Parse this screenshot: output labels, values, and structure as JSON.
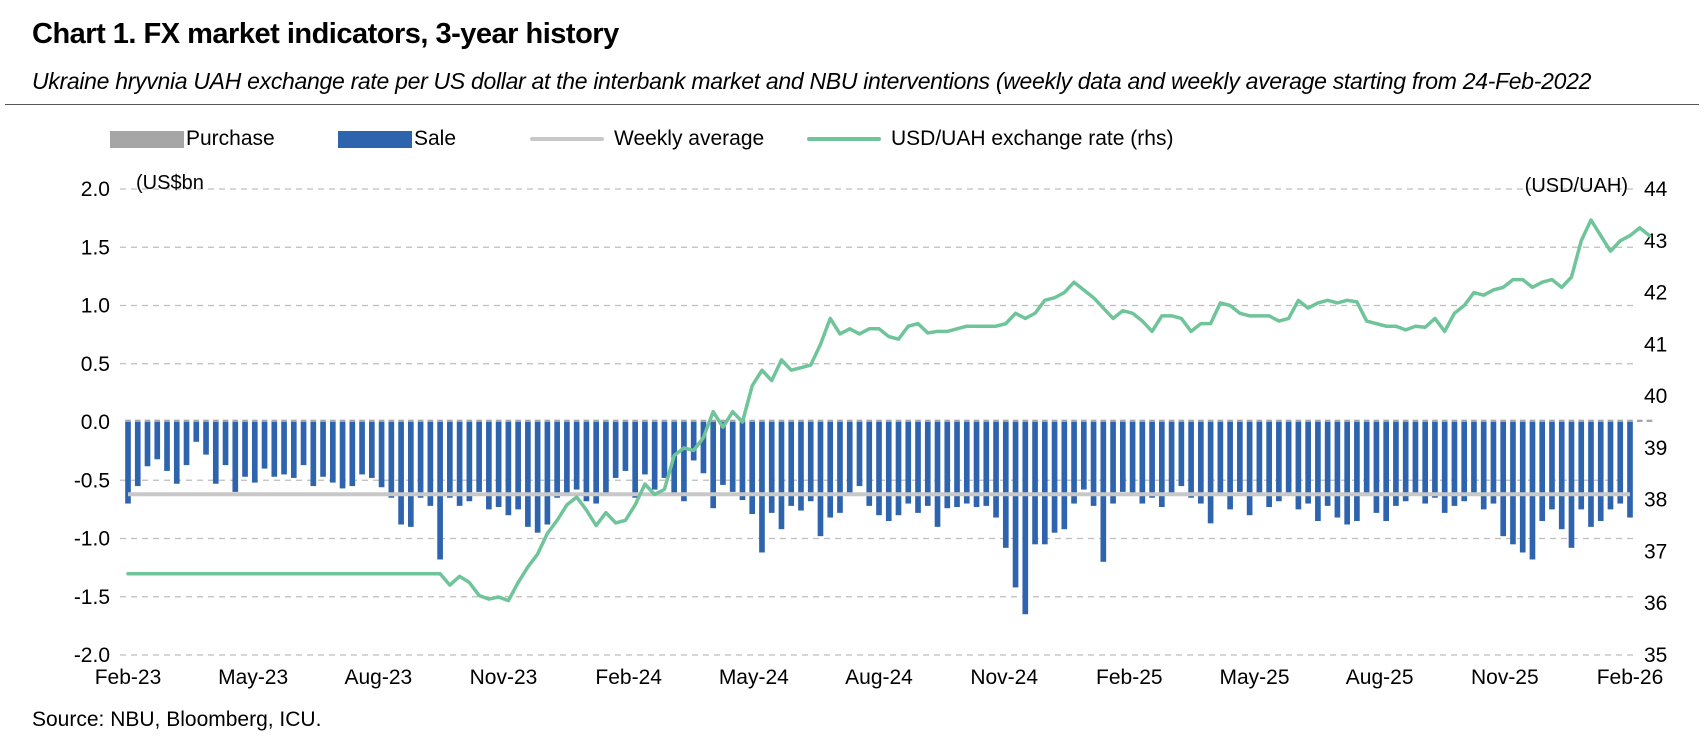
{
  "title": "Chart 1. FX market indicators, 3-year history",
  "subtitle": "Ukraine hryvnia UAH exchange rate per US dollar at the interbank market and NBU interventions (weekly data and weekly average starting from 24-Feb-2022",
  "source": "Source: NBU, Bloomberg, ICU.",
  "colors": {
    "purchase": "#a6a6a6",
    "sale": "#2e63ae",
    "weekly_average": "#c8c8c8",
    "exchange_rate": "#6fc49a",
    "grid": "#bdbdbd"
  },
  "legend": {
    "purchase": "Purchase",
    "sale": "Sale",
    "weekly_average": "Weekly average",
    "exchange_rate": "USD/UAH exchange rate (rhs)"
  },
  "chart_data": {
    "type": "bar",
    "left_axis_unit": "(US$bn",
    "right_axis_unit": "(USD/UAH)",
    "ylim": [
      -2.0,
      2.0
    ],
    "y2lim": [
      35,
      44
    ],
    "y_ticks": [
      "2.0",
      "1.5",
      "1.0",
      "0.5",
      "0.0",
      "-0.5",
      "-1.0",
      "-1.5",
      "-2.0"
    ],
    "y2_ticks": [
      "44",
      "43",
      "42",
      "41",
      "40",
      "39",
      "38",
      "37",
      "36",
      "35"
    ],
    "x_tick_labels": [
      "Feb-23",
      "May-23",
      "Aug-23",
      "Nov-23",
      "Feb-24",
      "May-24",
      "Aug-24",
      "Nov-24",
      "Feb-25",
      "May-25",
      "Aug-25",
      "Nov-25",
      "Feb-26"
    ],
    "grid": true,
    "legend_position": "top",
    "series": [
      {
        "name": "Purchase",
        "type": "bar",
        "values": [
          0.02,
          0.02,
          0.02,
          0.02,
          0.02,
          0.02,
          0.02,
          0.02,
          0.02,
          0.02,
          0.02,
          0.02,
          0.02,
          0.02,
          0.02,
          0.02,
          0.02,
          0.02,
          0.02,
          0.02,
          0.02,
          0.02,
          0.02,
          0.02,
          0.02,
          0.02,
          0.02,
          0.02,
          0.02,
          0.02,
          0.02,
          0.02,
          0.02,
          0.02,
          0.02,
          0.02,
          0.02,
          0.02,
          0.02,
          0.02,
          0.02,
          0.02,
          0.02,
          0.02,
          0.02,
          0.02,
          0.02,
          0.02,
          0.02,
          0.02,
          0.02,
          0.02,
          0.02,
          0.02,
          0.02,
          0.02,
          0.02,
          0.02,
          0.02,
          0.02,
          0.02,
          0.02,
          0.02,
          0.02,
          0.02,
          0.02,
          0.02,
          0.02,
          0.02,
          0.02,
          0.02,
          0.02,
          0.02,
          0.02,
          0.02,
          0.02,
          0.02,
          0.02,
          0.02,
          0.02,
          0.02,
          0.02,
          0.02,
          0.02,
          0.02,
          0.02,
          0.02,
          0.02,
          0.02,
          0.02,
          0.02,
          0.02,
          0.02,
          0.02,
          0.02,
          0.02,
          0.02,
          0.02,
          0.02,
          0.02,
          0.02,
          0.02,
          0.02,
          0.02,
          0.02,
          0.02,
          0.02,
          0.02,
          0.02,
          0.02,
          0.02,
          0.02,
          0.02,
          0.02,
          0.02,
          0.02,
          0.02,
          0.02,
          0.02,
          0.02,
          0.02,
          0.02,
          0.02,
          0.02,
          0.02,
          0.02,
          0.02,
          0.02,
          0.02,
          0.02,
          0.02,
          0.02,
          0.02,
          0.02,
          0.02,
          0.02,
          0.02,
          0.02,
          0.02,
          0.02,
          0.02,
          0.02,
          0.02,
          0.02,
          0.02,
          0.02,
          0.02,
          0.02,
          0.02,
          0.02,
          0.02,
          0.02,
          0.02,
          0.02,
          0.02,
          0.02,
          0.02
        ]
      },
      {
        "name": "Sale",
        "type": "bar",
        "values": [
          -0.7,
          -0.55,
          -0.38,
          -0.32,
          -0.42,
          -0.53,
          -0.37,
          -0.17,
          -0.28,
          -0.53,
          -0.37,
          -0.6,
          -0.47,
          -0.52,
          -0.4,
          -0.47,
          -0.45,
          -0.48,
          -0.37,
          -0.55,
          -0.47,
          -0.52,
          -0.57,
          -0.55,
          -0.45,
          -0.48,
          -0.56,
          -0.65,
          -0.88,
          -0.9,
          -0.65,
          -0.72,
          -1.18,
          -0.65,
          -0.72,
          -0.68,
          -0.6,
          -0.75,
          -0.73,
          -0.8,
          -0.75,
          -0.9,
          -0.95,
          -0.88,
          -0.65,
          -0.62,
          -0.58,
          -0.68,
          -0.7,
          -0.62,
          -0.48,
          -0.42,
          -0.65,
          -0.45,
          -0.58,
          -0.48,
          -0.62,
          -0.68,
          -0.33,
          -0.44,
          -0.74,
          -0.54,
          -0.6,
          -0.67,
          -0.79,
          -1.12,
          -0.78,
          -0.92,
          -0.72,
          -0.76,
          -0.68,
          -0.98,
          -0.82,
          -0.78,
          -0.62,
          -0.55,
          -0.72,
          -0.8,
          -0.85,
          -0.8,
          -0.7,
          -0.78,
          -0.72,
          -0.9,
          -0.74,
          -0.73,
          -0.7,
          -0.73,
          -0.72,
          -0.82,
          -1.08,
          -1.42,
          -1.65,
          -1.05,
          -1.05,
          -0.95,
          -0.92,
          -0.7,
          -0.58,
          -0.72,
          -1.2,
          -0.7,
          -0.6,
          -0.63,
          -0.7,
          -0.65,
          -0.73,
          -0.62,
          -0.55,
          -0.65,
          -0.7,
          -0.87,
          -0.62,
          -0.75,
          -0.6,
          -0.8,
          -0.62,
          -0.73,
          -0.68,
          -0.62,
          -0.75,
          -0.7,
          -0.85,
          -0.72,
          -0.82,
          -0.88,
          -0.85,
          -0.62,
          -0.78,
          -0.85,
          -0.72,
          -0.68,
          -0.63,
          -0.7,
          -0.65,
          -0.78,
          -0.72,
          -0.68,
          -0.62,
          -0.75,
          -0.7,
          -0.98,
          -1.05,
          -1.12,
          -1.18,
          -0.85,
          -0.75,
          -0.92,
          -1.08,
          -0.75,
          -0.9,
          -0.85,
          -0.75,
          -0.7,
          -0.82
        ]
      },
      {
        "name": "Weekly average",
        "type": "line",
        "values": [
          -0.62,
          -0.62,
          -0.62,
          -0.62,
          -0.62,
          -0.62,
          -0.62,
          -0.62,
          -0.62,
          -0.62,
          -0.62,
          -0.62,
          -0.62,
          -0.62,
          -0.62,
          -0.62,
          -0.62,
          -0.62,
          -0.62,
          -0.62,
          -0.62,
          -0.62,
          -0.62,
          -0.62,
          -0.62,
          -0.62,
          -0.62,
          -0.62,
          -0.62,
          -0.62,
          -0.62,
          -0.62,
          -0.62,
          -0.62,
          -0.62,
          -0.62,
          -0.62,
          -0.62,
          -0.62,
          -0.62,
          -0.62,
          -0.62,
          -0.62,
          -0.62,
          -0.62,
          -0.62,
          -0.62,
          -0.62,
          -0.62,
          -0.62,
          -0.62,
          -0.62,
          -0.62,
          -0.62,
          -0.62,
          -0.62,
          -0.62,
          -0.62,
          -0.62,
          -0.62,
          -0.62,
          -0.62,
          -0.62,
          -0.62,
          -0.62,
          -0.62,
          -0.62,
          -0.62,
          -0.62,
          -0.62,
          -0.62,
          -0.62,
          -0.62,
          -0.62,
          -0.62,
          -0.62,
          -0.62,
          -0.62,
          -0.62,
          -0.62,
          -0.62,
          -0.62,
          -0.62,
          -0.62,
          -0.62,
          -0.62,
          -0.62,
          -0.62,
          -0.62,
          -0.62,
          -0.62,
          -0.62,
          -0.62,
          -0.62,
          -0.62,
          -0.62,
          -0.62,
          -0.62,
          -0.62,
          -0.62,
          -0.62,
          -0.62,
          -0.62,
          -0.62,
          -0.62,
          -0.62,
          -0.62,
          -0.62,
          -0.62,
          -0.62,
          -0.62,
          -0.62,
          -0.62,
          -0.62,
          -0.62,
          -0.62,
          -0.62,
          -0.62,
          -0.62,
          -0.62,
          -0.62,
          -0.62,
          -0.62,
          -0.62,
          -0.62,
          -0.62,
          -0.62,
          -0.62,
          -0.62,
          -0.62,
          -0.62,
          -0.62,
          -0.62,
          -0.62,
          -0.62,
          -0.62,
          -0.62,
          -0.62,
          -0.62,
          -0.62,
          -0.62,
          -0.62,
          -0.62,
          -0.62,
          -0.62,
          -0.62,
          -0.62,
          -0.62,
          -0.62,
          -0.62,
          -0.62,
          -0.62,
          -0.62,
          -0.62,
          -0.62
        ]
      },
      {
        "name": "USD/UAH exchange rate (rhs)",
        "type": "line",
        "axis": "right",
        "values": [
          36.57,
          36.57,
          36.57,
          36.57,
          36.57,
          36.57,
          36.57,
          36.57,
          36.57,
          36.57,
          36.57,
          36.57,
          36.57,
          36.57,
          36.57,
          36.57,
          36.57,
          36.57,
          36.57,
          36.57,
          36.57,
          36.57,
          36.57,
          36.57,
          36.57,
          36.57,
          36.57,
          36.57,
          36.57,
          36.57,
          36.57,
          36.57,
          36.57,
          36.35,
          36.52,
          36.4,
          36.15,
          36.08,
          36.12,
          36.05,
          36.4,
          36.7,
          36.95,
          37.35,
          37.6,
          37.9,
          38.05,
          37.8,
          37.5,
          37.75,
          37.55,
          37.6,
          37.9,
          38.3,
          38.1,
          38.2,
          38.85,
          39.0,
          38.95,
          39.2,
          39.7,
          39.4,
          39.7,
          39.5,
          40.2,
          40.5,
          40.3,
          40.7,
          40.5,
          40.55,
          40.6,
          41.0,
          41.5,
          41.2,
          41.3,
          41.2,
          41.3,
          41.3,
          41.15,
          41.1,
          41.35,
          41.4,
          41.22,
          41.25,
          41.25,
          41.3,
          41.35,
          41.35,
          41.35,
          41.35,
          41.4,
          41.6,
          41.5,
          41.6,
          41.85,
          41.9,
          42.0,
          42.2,
          42.05,
          41.9,
          41.7,
          41.5,
          41.65,
          41.6,
          41.45,
          41.25,
          41.55,
          41.55,
          41.5,
          41.25,
          41.4,
          41.4,
          41.8,
          41.75,
          41.6,
          41.55,
          41.55,
          41.55,
          41.45,
          41.5,
          41.85,
          41.7,
          41.8,
          41.85,
          41.8,
          41.85,
          41.82,
          41.45,
          41.4,
          41.35,
          41.35,
          41.28,
          41.35,
          41.33,
          41.5,
          41.25,
          41.6,
          41.75,
          42.0,
          41.95,
          42.05,
          42.1,
          42.25,
          42.25,
          42.1,
          42.2,
          42.25,
          42.1,
          42.3,
          43.0,
          43.4,
          43.1,
          42.8,
          43.0,
          43.1,
          43.25,
          43.1
        ]
      }
    ]
  }
}
